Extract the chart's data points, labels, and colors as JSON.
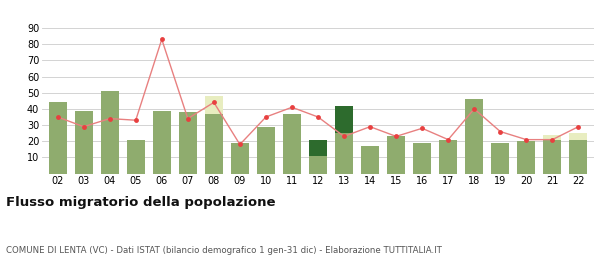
{
  "years": [
    "02",
    "03",
    "04",
    "05",
    "06",
    "07",
    "08",
    "09",
    "10",
    "11",
    "12",
    "13",
    "14",
    "15",
    "16",
    "17",
    "18",
    "19",
    "20",
    "21",
    "22"
  ],
  "iscritti_altri_comuni": [
    44,
    39,
    51,
    21,
    39,
    38,
    37,
    19,
    29,
    37,
    11,
    25,
    17,
    23,
    19,
    21,
    46,
    19,
    20,
    21,
    21
  ],
  "iscritti_estero": [
    0,
    0,
    0,
    0,
    0,
    0,
    11,
    0,
    0,
    0,
    0,
    0,
    0,
    0,
    0,
    0,
    0,
    0,
    0,
    3,
    4
  ],
  "iscritti_altri": [
    0,
    0,
    0,
    0,
    0,
    0,
    0,
    0,
    0,
    0,
    10,
    17,
    0,
    0,
    0,
    0,
    0,
    0,
    0,
    0,
    0
  ],
  "cancellati": [
    35,
    29,
    34,
    33,
    83,
    34,
    44,
    18,
    35,
    41,
    35,
    23,
    29,
    23,
    28,
    21,
    40,
    26,
    21,
    21,
    29
  ],
  "color_altri_comuni": "#8fac6e",
  "color_estero": "#e8edc0",
  "color_altri": "#2d6b2d",
  "color_cancellati": "#e84040",
  "color_line": "#e88080",
  "ylim": [
    0,
    90
  ],
  "yticks": [
    10,
    20,
    30,
    40,
    50,
    60,
    70,
    80,
    90
  ],
  "title": "Flusso migratorio della popolazione",
  "subtitle": "COMUNE DI LENTA (VC) - Dati ISTAT (bilancio demografico 1 gen-31 dic) - Elaborazione TUTTITALIA.IT",
  "bg_color": "#ffffff",
  "grid_color": "#cccccc"
}
